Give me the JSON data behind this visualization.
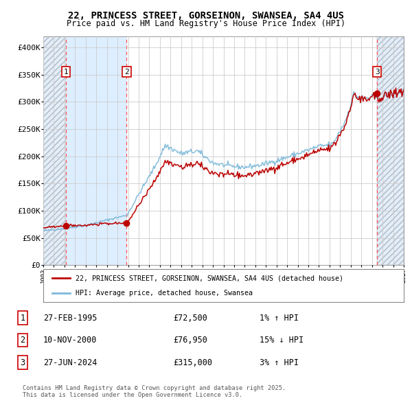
{
  "title": "22, PRINCESS STREET, GORSEINON, SWANSEA, SA4 4US",
  "subtitle": "Price paid vs. HM Land Registry's House Price Index (HPI)",
  "sale1_date": 1995.15,
  "sale1_price": 72500,
  "sale2_date": 2000.86,
  "sale2_price": 76950,
  "sale3_date": 2024.49,
  "sale3_price": 315000,
  "xlim_left": 1993.0,
  "xlim_right": 2027.0,
  "ylim_bottom": 0,
  "ylim_top": 420000,
  "yticks": [
    0,
    50000,
    100000,
    150000,
    200000,
    250000,
    300000,
    350000,
    400000
  ],
  "ytick_labels": [
    "£0",
    "£50K",
    "£100K",
    "£150K",
    "£200K",
    "£250K",
    "£300K",
    "£350K",
    "£400K"
  ],
  "hpi_color": "#7ab8d9",
  "price_color": "#bb0000",
  "dot_color": "#bb0000",
  "shade_color": "#ddeeff",
  "hatch_color": "#ccddee",
  "grid_color": "#cccccc",
  "dashed_color": "#ff5555",
  "legend1": "22, PRINCESS STREET, GORSEINON, SWANSEA, SA4 4US (detached house)",
  "legend2": "HPI: Average price, detached house, Swansea",
  "footnote": "Contains HM Land Registry data © Crown copyright and database right 2025.\nThis data is licensed under the Open Government Licence v3.0.",
  "bg_color": "#ffffff",
  "row1_num": "1",
  "row1_date": "27-FEB-1995",
  "row1_price": "£72,500",
  "row1_hpi": "1% ↑ HPI",
  "row2_num": "2",
  "row2_date": "10-NOV-2000",
  "row2_price": "£76,950",
  "row2_hpi": "15% ↓ HPI",
  "row3_num": "3",
  "row3_date": "27-JUN-2024",
  "row3_price": "£315,000",
  "row3_hpi": "3% ↑ HPI"
}
